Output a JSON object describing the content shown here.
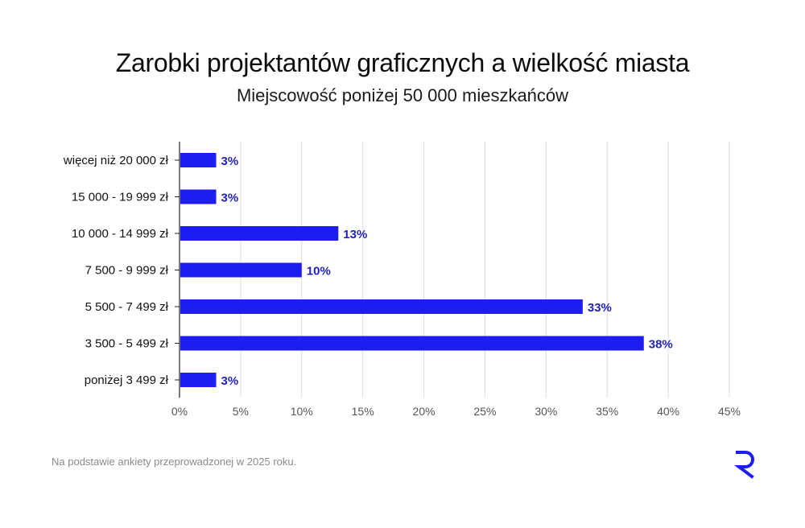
{
  "chart_data": {
    "type": "bar",
    "orientation": "horizontal",
    "title": "Zarobki projektantów graficznych a wielkość miasta",
    "subtitle": "Miejscowość poniżej 50 000 mieszkańców",
    "categories": [
      "więcej niż 20 000 zł",
      "15 000 - 19 999 zł",
      "10 000 - 14 999 zł",
      "7 500 - 9 999 zł",
      "5 500 - 7 499 zł",
      "3 500 - 5 499 zł",
      "poniżej 3 499 zł"
    ],
    "values": [
      3,
      3,
      13,
      10,
      33,
      38,
      3
    ],
    "value_labels": [
      "3%",
      "3%",
      "13%",
      "10%",
      "33%",
      "38%",
      "3%"
    ],
    "xlim": [
      0,
      45
    ],
    "xticks": [
      0,
      5,
      10,
      15,
      20,
      25,
      30,
      35,
      40,
      45
    ],
    "xtick_labels": [
      "0%",
      "5%",
      "10%",
      "15%",
      "20%",
      "25%",
      "30%",
      "35%",
      "40%",
      "45%"
    ],
    "grid": "vertical",
    "bar_color": "#1d1df2",
    "label_color": "#2222b8",
    "grid_color": "#dcdcdc"
  },
  "footnote": "Na podstawie ankiety przeprowadzonej w 2025 roku.",
  "logo": {
    "icon": "r-logo-icon",
    "color": "#1d1df2"
  }
}
